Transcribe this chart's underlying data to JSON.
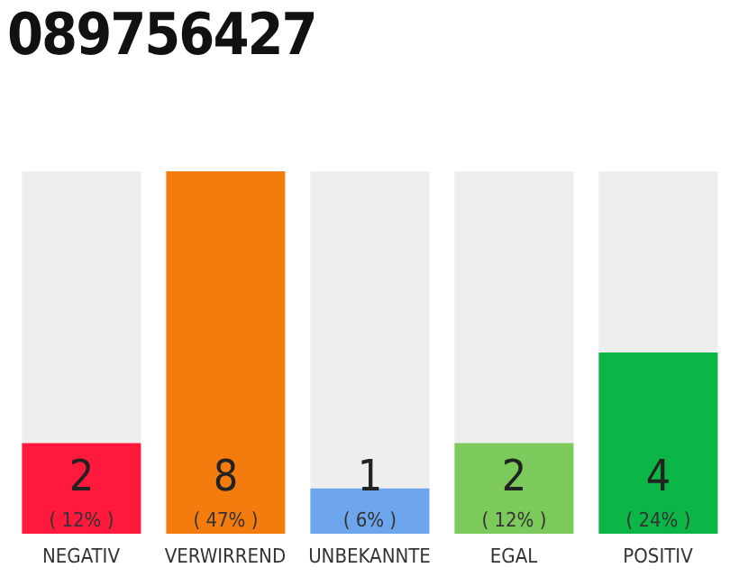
{
  "chart_data": {
    "type": "bar",
    "title": "089756427",
    "categories": [
      "NEGATIV",
      "VERWIRREND",
      "UNBEKANNTE",
      "EGAL",
      "POSITIV"
    ],
    "values": [
      2,
      8,
      1,
      2,
      4
    ],
    "colors": [
      "#ff1a3d",
      "#f47c0f",
      "#6ea6ee",
      "#7cc95c",
      "#0bb646"
    ],
    "value_labels": [
      "2\n( 12% )",
      "8\n( 47% )",
      "1\n( 6% )",
      "2\n( 12% )",
      "4\n( 24% )"
    ]
  }
}
